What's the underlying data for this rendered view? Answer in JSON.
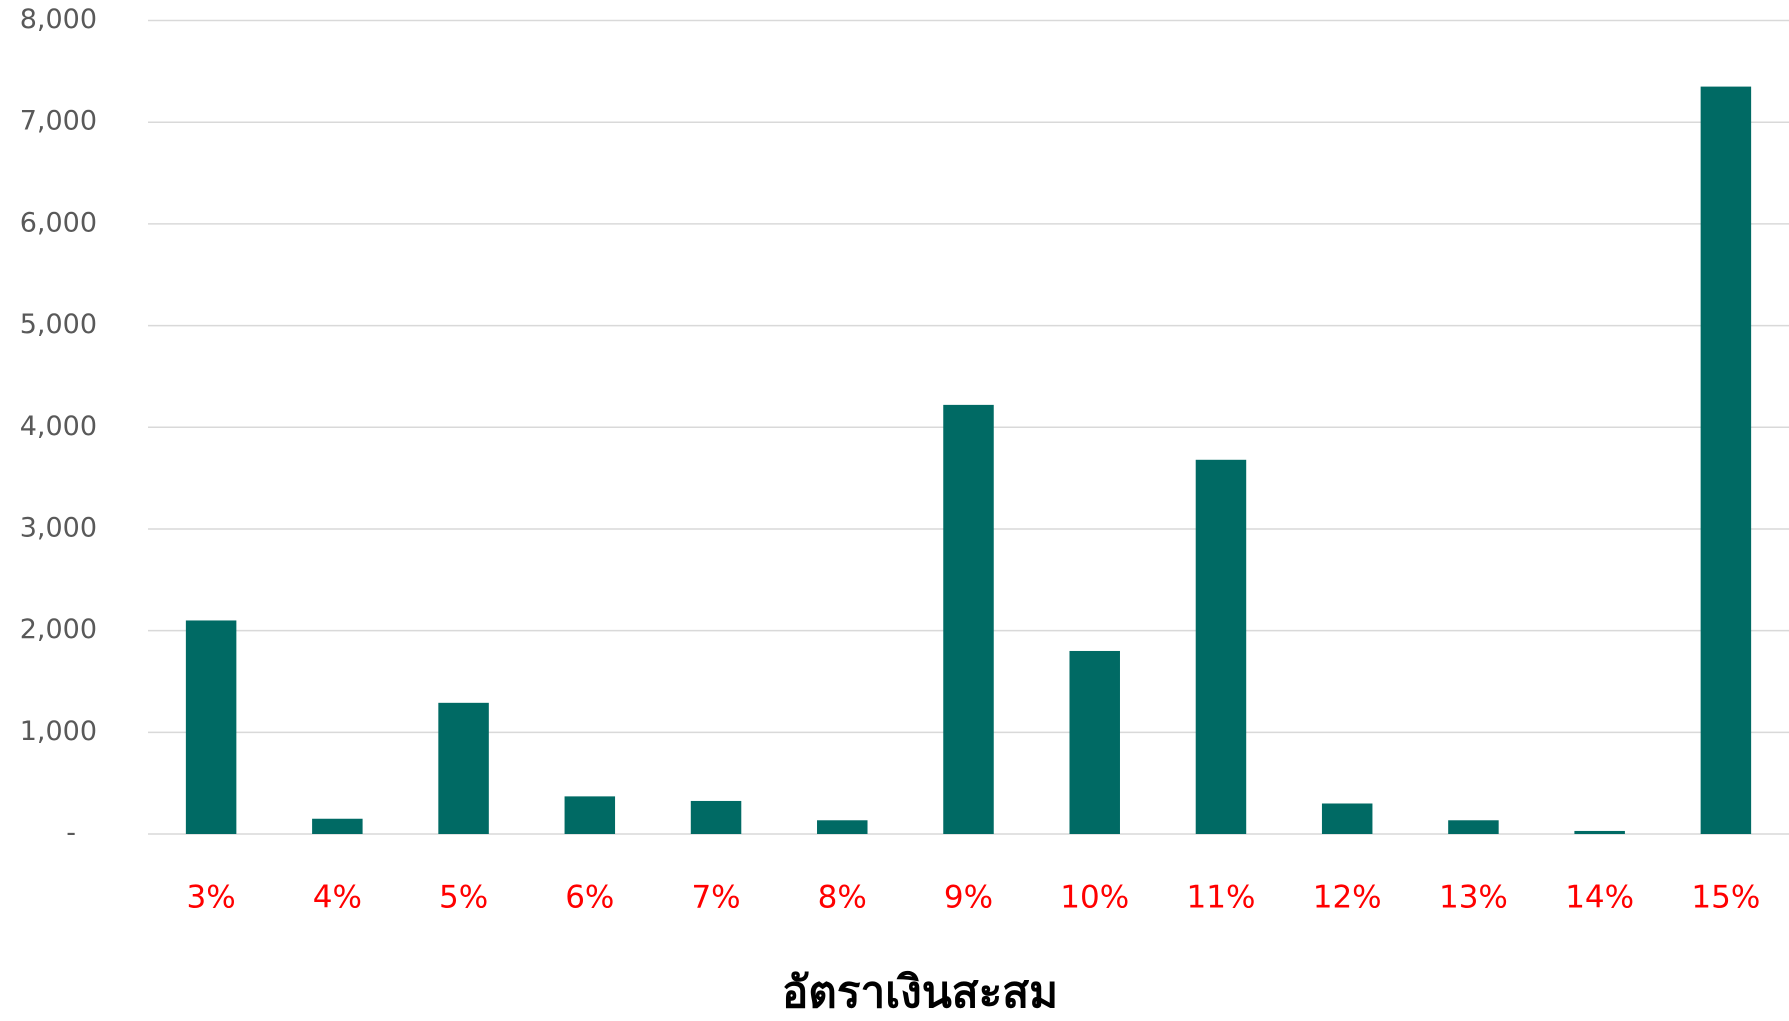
{
  "chart_data": {
    "type": "bar",
    "x_label": "อัตราเงินสะสม",
    "categories": [
      "3%",
      "4%",
      "5%",
      "6%",
      "7%",
      "8%",
      "9%",
      "10%",
      "11%",
      "12%",
      "13%",
      "14%",
      "15%"
    ],
    "values": [
      2100,
      150,
      1290,
      370,
      325,
      135,
      4220,
      1800,
      3680,
      300,
      135,
      30,
      7350
    ],
    "color": "#006A64",
    "ylim": [
      0,
      8000
    ],
    "yticks": [
      {
        "value": 0,
        "label": "-"
      },
      {
        "value": 1000,
        "label": "1,000"
      },
      {
        "value": 2000,
        "label": "2,000"
      },
      {
        "value": 3000,
        "label": "3,000"
      },
      {
        "value": 4000,
        "label": "4,000"
      },
      {
        "value": 5000,
        "label": "5,000"
      },
      {
        "value": 6000,
        "label": "6,000"
      },
      {
        "value": 7000,
        "label": "7,000"
      },
      {
        "value": 8000,
        "label": "8,000"
      }
    ],
    "grid": true
  }
}
